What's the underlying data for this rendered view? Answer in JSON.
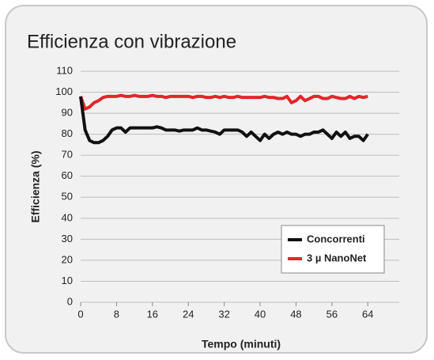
{
  "chart_data": {
    "type": "line",
    "title": "Efficienza con vibrazione",
    "x_label": "Tempo (minuti)",
    "y_label": "Efficienza (%)",
    "x": [
      0,
      1,
      2,
      3,
      4,
      5,
      6,
      7,
      8,
      9,
      10,
      11,
      12,
      13,
      14,
      15,
      16,
      17,
      18,
      19,
      20,
      21,
      22,
      23,
      24,
      25,
      26,
      27,
      28,
      29,
      30,
      31,
      32,
      33,
      34,
      35,
      36,
      37,
      38,
      39,
      40,
      41,
      42,
      43,
      44,
      45,
      46,
      47,
      48,
      49,
      50,
      51,
      52,
      53,
      54,
      55,
      56,
      57,
      58,
      59,
      60,
      61,
      62,
      63,
      64
    ],
    "series": [
      {
        "name": "Concorrenti",
        "color": "#111111",
        "values": [
          98,
          82,
          77,
          76,
          76,
          77,
          79,
          82,
          83,
          83,
          81,
          83,
          83,
          83,
          83,
          83,
          83,
          83.5,
          83,
          82,
          82,
          82,
          81.5,
          82,
          82,
          82,
          83,
          82,
          82,
          81.5,
          81,
          80,
          82,
          82,
          82,
          82,
          81,
          79,
          81,
          79,
          77,
          80,
          78,
          80,
          81,
          80,
          81,
          80,
          80,
          79,
          80,
          80,
          81,
          81,
          82,
          80,
          78,
          81,
          79,
          81,
          78,
          79,
          79,
          77,
          80
        ]
      },
      {
        "name": "3 µ NanoNet",
        "color": "#e2262b",
        "values": [
          98,
          92,
          93,
          95,
          96,
          97.5,
          98,
          98,
          98,
          98.5,
          98,
          98,
          98.5,
          98,
          98,
          98,
          98.5,
          98,
          98,
          97.5,
          98,
          98,
          98,
          98,
          98,
          97.5,
          98,
          98,
          97.5,
          97.5,
          98,
          97.5,
          98,
          97.5,
          97.5,
          98,
          97.5,
          97.5,
          97.5,
          97.5,
          97.5,
          98,
          97.5,
          97.5,
          97,
          97,
          98,
          95,
          96,
          98,
          96,
          97,
          98,
          98,
          97,
          97,
          98,
          97.5,
          97,
          97,
          98,
          97,
          98,
          97.5,
          98
        ]
      }
    ],
    "xlim": [
      0,
      71
    ],
    "xticks": [
      0,
      8,
      16,
      24,
      32,
      40,
      48,
      56,
      64
    ],
    "ylim": [
      0,
      110
    ],
    "yticks": [
      0,
      10,
      20,
      30,
      40,
      50,
      60,
      70,
      80,
      90,
      100,
      110
    ],
    "grid": true,
    "legend": "lower right"
  }
}
